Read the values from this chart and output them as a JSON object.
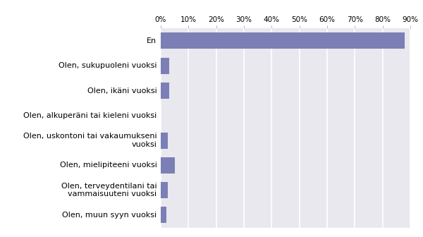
{
  "categories": [
    "Olen, muun syyn vuoksi",
    "Olen, terveydentilani tai\nvammaisuuteni vuoksi",
    "Olen, mielipiteeni vuoksi",
    "Olen, uskontoni tai vakaumukseni\nvuoksi",
    "Olen, alkuperäni tai kieleni vuoksi",
    "Olen, ikäni vuoksi",
    "Olen, sukupuoleni vuoksi",
    "En"
  ],
  "values": [
    2.0,
    2.5,
    5.0,
    2.5,
    0.0,
    3.0,
    3.0,
    88.0
  ],
  "bar_color": "#7b7fb5",
  "fig_background": "#ffffff",
  "plot_background": "#e8e8ee",
  "xlim": [
    0,
    90
  ],
  "xtick_values": [
    0,
    10,
    20,
    30,
    40,
    50,
    60,
    70,
    80,
    90
  ],
  "xtick_labels": [
    "0%",
    "10%",
    "20%",
    "30%",
    "40%",
    "50%",
    "60%",
    "70%",
    "80%",
    "90%"
  ],
  "grid_color": "#ffffff",
  "tick_label_fontsize": 7.5,
  "bar_label_fontsize": 8.0
}
